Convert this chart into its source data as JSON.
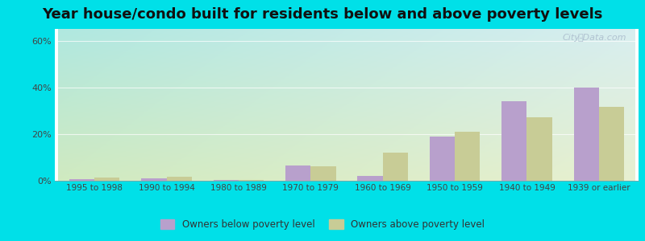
{
  "title": "Year house/condo built for residents below and above poverty levels",
  "categories": [
    "1995 to 1998",
    "1990 to 1994",
    "1980 to 1989",
    "1970 to 1979",
    "1960 to 1969",
    "1950 to 1959",
    "1940 to 1949",
    "1939 or earlier"
  ],
  "below_poverty": [
    0.8,
    1.0,
    0.3,
    6.5,
    2.2,
    19.0,
    34.0,
    40.0
  ],
  "above_poverty": [
    1.5,
    1.8,
    0.5,
    6.2,
    12.0,
    21.0,
    27.0,
    31.5
  ],
  "below_color": "#b8a0cc",
  "above_color": "#c8cc96",
  "ylim": [
    0,
    65
  ],
  "yticks": [
    0,
    20,
    40,
    60
  ],
  "ytick_labels": [
    "0%",
    "20%",
    "40%",
    "60%"
  ],
  "outer_bg": "#00e0e8",
  "title_fontsize": 13,
  "legend_below_label": "Owners below poverty level",
  "legend_above_label": "Owners above poverty level",
  "watermark": "City-Data.com",
  "bg_top_left": "#b0e8e0",
  "bg_top_right": "#d8eef0",
  "bg_bottom_left": "#d4eac8",
  "bg_bottom_right": "#e8f0d8"
}
